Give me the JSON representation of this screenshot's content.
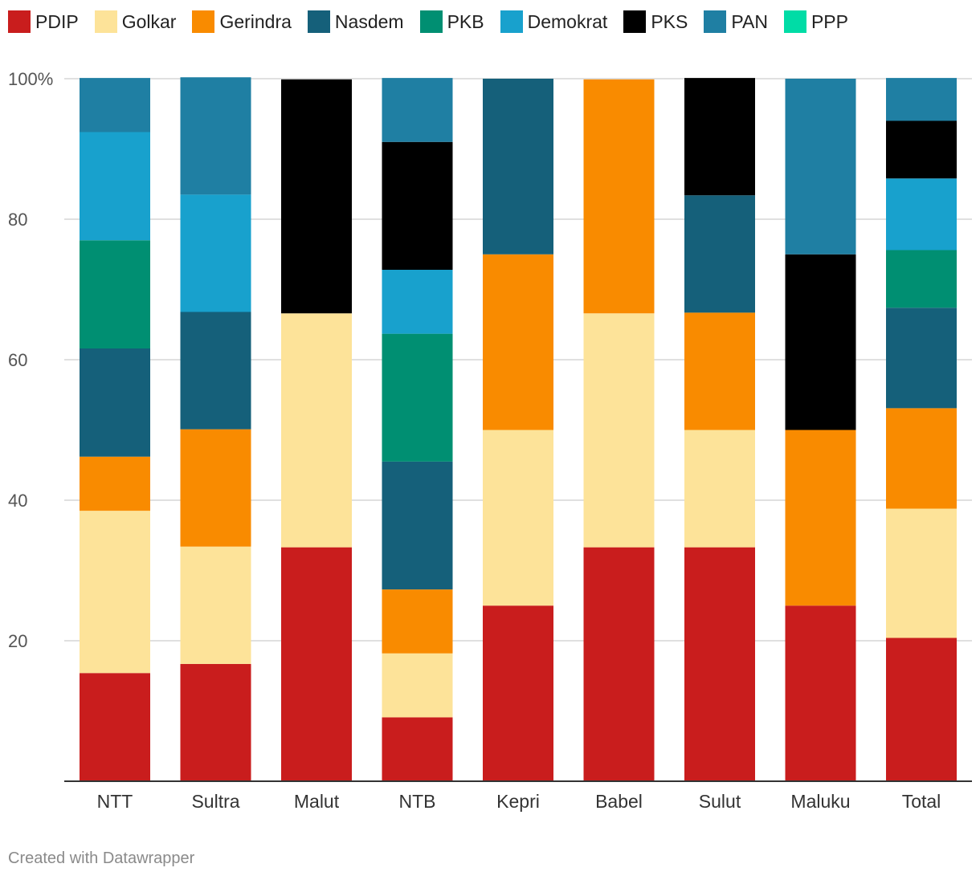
{
  "chart_data": {
    "type": "bar",
    "stacked": true,
    "percent": true,
    "title": "",
    "xlabel": "",
    "ylabel": "",
    "ylim": [
      0,
      100
    ],
    "yticks": [
      {
        "value": 20,
        "label": "20"
      },
      {
        "value": 40,
        "label": "40"
      },
      {
        "value": 60,
        "label": "60"
      },
      {
        "value": 80,
        "label": "80"
      },
      {
        "value": 100,
        "label": "100%"
      }
    ],
    "grid": true,
    "legend_position": "top",
    "categories": [
      "NTT",
      "Sultra",
      "Malut",
      "NTB",
      "Kepri",
      "Babel",
      "Sulut",
      "Maluku",
      "Total"
    ],
    "series": [
      {
        "name": "PDIP",
        "color": "#c91d1d",
        "values": [
          15.4,
          16.7,
          33.3,
          9.1,
          25.0,
          33.3,
          33.3,
          25.0,
          20.4
        ]
      },
      {
        "name": "Golkar",
        "color": "#fde399",
        "values": [
          23.1,
          16.7,
          33.3,
          9.1,
          25.0,
          33.3,
          16.7,
          0,
          18.4
        ]
      },
      {
        "name": "Gerindra",
        "color": "#f98b00",
        "values": [
          7.7,
          16.7,
          0,
          9.1,
          25.0,
          33.3,
          16.7,
          25.0,
          14.3
        ]
      },
      {
        "name": "Nasdem",
        "color": "#15607a",
        "values": [
          15.4,
          16.7,
          0,
          18.2,
          25.0,
          0,
          16.7,
          0,
          14.3
        ]
      },
      {
        "name": "PKB",
        "color": "#008f72",
        "values": [
          15.4,
          0,
          0,
          18.2,
          0,
          0,
          0,
          0,
          8.2
        ]
      },
      {
        "name": "Demokrat",
        "color": "#18a1cd",
        "values": [
          15.4,
          16.7,
          0,
          9.1,
          0,
          0,
          0,
          0,
          10.2
        ]
      },
      {
        "name": "PKS",
        "color": "#000000",
        "values": [
          0,
          0,
          33.3,
          18.2,
          0,
          0,
          16.7,
          25.0,
          8.2
        ]
      },
      {
        "name": "PAN",
        "color": "#1f7fa3",
        "values": [
          7.7,
          16.7,
          0,
          9.1,
          0,
          0,
          0,
          25.0,
          6.1
        ]
      },
      {
        "name": "PPP",
        "color": "#00dca6",
        "values": [
          0,
          0,
          0,
          0,
          0,
          0,
          0,
          0,
          0
        ]
      }
    ]
  },
  "footer": {
    "credit": "Created with Datawrapper"
  }
}
